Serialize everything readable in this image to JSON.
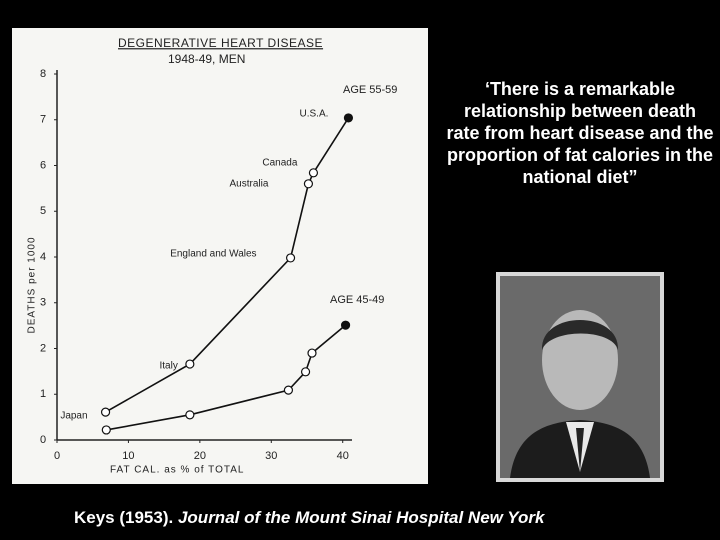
{
  "chart_data": {
    "type": "line",
    "title": "DEGENERATIVE HEART DISEASE",
    "subtitle": "1948-49, MEN",
    "y_label": "DEATHS per 1000",
    "x_label": "FAT CAL. as % of TOTAL",
    "xlim": [
      0,
      42
    ],
    "xticks": [
      0,
      10,
      20,
      30,
      40
    ],
    "ylim": [
      0,
      8
    ],
    "yticks": [
      0,
      1,
      2,
      3,
      4,
      5,
      6,
      7,
      8
    ],
    "series": [
      {
        "name": "AGE 55-59",
        "color": "#111111",
        "x": [
          6.8,
          18.6,
          32.7,
          35.2,
          35.9,
          40.8
        ],
        "values": [
          0.61,
          1.66,
          3.98,
          5.6,
          5.84,
          7.04
        ],
        "point_labels": [
          "Japan",
          "Italy",
          "England and Wales",
          "Australia",
          "Canada",
          "U.S.A."
        ]
      },
      {
        "name": "AGE 45-49",
        "color": "#111111",
        "x": [
          6.9,
          18.6,
          32.4,
          34.8,
          35.7,
          40.4
        ],
        "values": [
          0.22,
          0.55,
          1.09,
          1.49,
          1.9,
          2.51
        ]
      }
    ]
  },
  "quote": "‘There is a remarkable relationship between death rate from heart disease and the proportion of fat calories in the national diet”",
  "citation": {
    "author": "Keys (1953).",
    "journal": "Journal of the Mount Sinai Hospital New York"
  }
}
